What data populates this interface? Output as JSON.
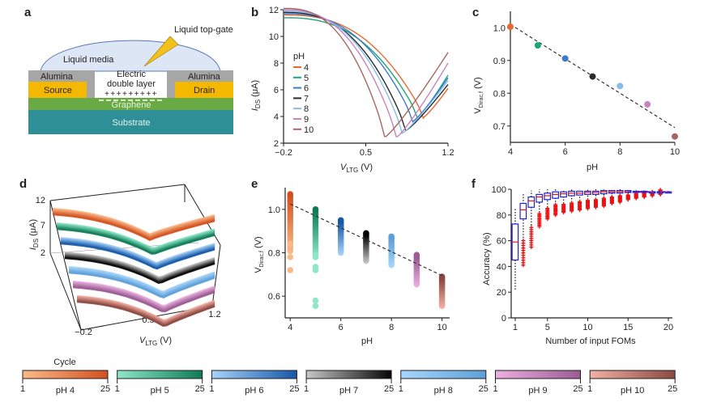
{
  "colors": {
    "pH4": "#e8692f",
    "pH5": "#1ea67a",
    "pH6": "#3b7bcb",
    "pH7": "#2b2b2b",
    "pH8": "#86bdec",
    "pH9": "#c882c0",
    "pH10": "#a86660",
    "alumina": "#a6a6a6",
    "electrode": "#f5b800",
    "graphene": "#6aaa45",
    "substrate": "#2f8f96",
    "liquid": "#dde6f5",
    "liquid_edge": "#5a78b3",
    "gate": "#f2c21a",
    "box_blue": "#2020e0",
    "outlier_red": "#ee1111"
  },
  "panel_a": {
    "label": "a",
    "gate_label": "Liquid top-gate",
    "liquid_label": "Liquid media",
    "alumina_left": "Alumina",
    "alumina_right": "Alumina",
    "source": "Source",
    "drain": "Drain",
    "edl_line1": "Electric",
    "edl_line2": "double layer",
    "plus_signs": "+++++++++",
    "graphene": "Graphene",
    "substrate": "Substrate"
  },
  "chart_data": [
    {
      "id": "b",
      "type": "line",
      "title": "",
      "xlabel": "V_LTG (V)",
      "ylabel": "I_DS (μA)",
      "xlim": [
        -0.2,
        1.2
      ],
      "ylim": [
        2,
        12
      ],
      "xticks": [
        -0.2,
        0.5,
        1.2
      ],
      "yticks": [
        2,
        4,
        6,
        8,
        10,
        12
      ],
      "legend_title": "pH",
      "legend_position": "left-middle",
      "series": [
        {
          "name": "4",
          "color_key": "pH4",
          "dirac_v": 1.0,
          "min_i": 4.0,
          "start_i": 11.6,
          "end_i": 6.1
        },
        {
          "name": "5",
          "color_key": "pH5",
          "dirac_v": 0.95,
          "min_i": 4.0,
          "start_i": 11.4,
          "end_i": 7.1
        },
        {
          "name": "6",
          "color_key": "pH6",
          "dirac_v": 0.91,
          "min_i": 3.7,
          "start_i": 11.7,
          "end_i": 6.9
        },
        {
          "name": "7",
          "color_key": "pH7",
          "dirac_v": 0.85,
          "min_i": 3.0,
          "start_i": 11.8,
          "end_i": 6.4
        },
        {
          "name": "8",
          "color_key": "pH8",
          "dirac_v": 0.82,
          "min_i": 2.8,
          "start_i": 11.9,
          "end_i": 6.7
        },
        {
          "name": "9",
          "color_key": "pH9",
          "dirac_v": 0.77,
          "min_i": 2.5,
          "start_i": 12.0,
          "end_i": 8.0
        },
        {
          "name": "10",
          "color_key": "pH10",
          "dirac_v": 0.67,
          "min_i": 2.5,
          "start_i": 12.1,
          "end_i": 8.8
        }
      ]
    },
    {
      "id": "c",
      "type": "scatter",
      "title": "",
      "xlabel": "pH",
      "ylabel": "V_Dirac,f (V)",
      "xlim": [
        4,
        10
      ],
      "ylim": [
        0.65,
        1.05
      ],
      "xticks": [
        4,
        6,
        8,
        10
      ],
      "yticks": [
        0.7,
        0.8,
        0.9,
        1.0
      ],
      "x": [
        4,
        5,
        6,
        7,
        8,
        9,
        10
      ],
      "y": [
        1.003,
        0.946,
        0.906,
        0.851,
        0.822,
        0.766,
        0.668
      ],
      "color_keys": [
        "pH4",
        "pH5",
        "pH6",
        "pH7",
        "pH8",
        "pH9",
        "pH10"
      ],
      "fit_line": {
        "x": [
          4,
          10
        ],
        "y": [
          1.01,
          0.695
        ],
        "style": "dashed"
      }
    },
    {
      "id": "d",
      "type": "line",
      "title": "",
      "projection": "3d",
      "xlabel": "V_LTG (V)",
      "zlabel": "I_DS (μA)",
      "xticks": [
        -0.2,
        0.5,
        1.2
      ],
      "zticks": [
        2,
        7,
        12
      ],
      "cycles_per_pH": 25,
      "series_pH": [
        4,
        5,
        6,
        7,
        8,
        9,
        10
      ],
      "color_keys": [
        "pH4",
        "pH5",
        "pH6",
        "pH7",
        "pH8",
        "pH9",
        "pH10"
      ]
    },
    {
      "id": "e",
      "type": "scatter",
      "title": "",
      "xlabel": "pH",
      "ylabel": "V_Dirac,f (V)",
      "xlim": [
        3.8,
        10.3
      ],
      "ylim": [
        0.5,
        1.1
      ],
      "xticks": [
        4,
        6,
        8,
        10
      ],
      "yticks": [
        0.6,
        0.8,
        1.0
      ],
      "groups": [
        {
          "x": 4,
          "color_key": "pH4",
          "min": 0.72,
          "max": 1.07,
          "outliers": [
            0.72,
            0.78,
            0.84
          ]
        },
        {
          "x": 5,
          "color_key": "pH5",
          "min": 0.72,
          "max": 1.0,
          "outliers": [
            0.555,
            0.58,
            0.72,
            0.735,
            0.78,
            0.79
          ]
        },
        {
          "x": 6,
          "color_key": "pH6",
          "min": 0.75,
          "max": 0.95,
          "outliers": []
        },
        {
          "x": 7,
          "color_key": "pH7",
          "min": 0.72,
          "max": 0.89,
          "outliers": []
        },
        {
          "x": 8,
          "color_key": "pH8",
          "min": 0.7,
          "max": 0.875,
          "outliers": []
        },
        {
          "x": 9,
          "color_key": "pH9",
          "min": 0.61,
          "max": 0.79,
          "outliers": []
        },
        {
          "x": 10,
          "color_key": "pH10",
          "min": 0.51,
          "max": 0.69,
          "outliers": []
        }
      ],
      "fit_line": {
        "x": [
          4,
          10
        ],
        "y": [
          1.025,
          0.695
        ],
        "style": "dashed"
      }
    },
    {
      "id": "f",
      "type": "box",
      "title": "",
      "xlabel": "Number of input FOMs",
      "ylabel": "Accuracy (%)",
      "xlim": [
        0.5,
        20.5
      ],
      "ylim": [
        0,
        100
      ],
      "xticks": [
        1,
        5,
        10,
        15,
        20
      ],
      "yticks": [
        0,
        20,
        40,
        60,
        80,
        100
      ],
      "boxes": [
        {
          "n": 1,
          "q1": 45,
          "median": 59,
          "q3": 73,
          "wlo": 22,
          "whi": 85,
          "outliers_lo": 0,
          "outliers_hi": 0
        },
        {
          "n": 2,
          "q1": 77,
          "median": 84,
          "q3": 89,
          "wlo": 60,
          "whi": 97,
          "outliers_lo": 41,
          "outliers_hi": 60
        },
        {
          "n": 3,
          "q1": 86,
          "median": 91,
          "q3": 94,
          "wlo": 72,
          "whi": 99,
          "outliers_lo": 55,
          "outliers_hi": 72
        },
        {
          "n": 4,
          "q1": 90,
          "median": 94,
          "q3": 96,
          "wlo": 82,
          "whi": 100,
          "outliers_lo": 71,
          "outliers_hi": 81
        },
        {
          "n": 5,
          "q1": 92,
          "median": 95,
          "q3": 97,
          "wlo": 86,
          "whi": 100,
          "outliers_lo": 77,
          "outliers_hi": 86
        },
        {
          "n": 6,
          "q1": 93,
          "median": 96,
          "q3": 98,
          "wlo": 88,
          "whi": 100,
          "outliers_lo": 80,
          "outliers_hi": 88
        },
        {
          "n": 7,
          "q1": 94,
          "median": 96.5,
          "q3": 98,
          "wlo": 89,
          "whi": 100,
          "outliers_lo": 82,
          "outliers_hi": 89
        },
        {
          "n": 8,
          "q1": 95,
          "median": 97,
          "q3": 98.5,
          "wlo": 90,
          "whi": 100,
          "outliers_lo": 83,
          "outliers_hi": 90
        },
        {
          "n": 9,
          "q1": 95.5,
          "median": 97,
          "q3": 98.5,
          "wlo": 91,
          "whi": 100,
          "outliers_lo": 84,
          "outliers_hi": 91
        },
        {
          "n": 10,
          "q1": 96,
          "median": 97.5,
          "q3": 98.5,
          "wlo": 92,
          "whi": 100,
          "outliers_lo": 85,
          "outliers_hi": 92
        },
        {
          "n": 11,
          "q1": 96,
          "median": 97.5,
          "q3": 98.5,
          "wlo": 92.5,
          "whi": 100,
          "outliers_lo": 86,
          "outliers_hi": 92.5
        },
        {
          "n": 12,
          "q1": 96.5,
          "median": 98,
          "q3": 99,
          "wlo": 93,
          "whi": 100,
          "outliers_lo": 87,
          "outliers_hi": 93
        },
        {
          "n": 13,
          "q1": 97,
          "median": 98,
          "q3": 99,
          "wlo": 94,
          "whi": 100,
          "outliers_lo": 89,
          "outliers_hi": 94
        },
        {
          "n": 14,
          "q1": 97,
          "median": 98,
          "q3": 99,
          "wlo": 95,
          "whi": 100,
          "outliers_lo": 90,
          "outliers_hi": 95
        },
        {
          "n": 15,
          "q1": 97.5,
          "median": 98,
          "q3": 99,
          "wlo": 96,
          "whi": 99.5,
          "outliers_lo": 92,
          "outliers_hi": 96
        },
        {
          "n": 16,
          "q1": 97.5,
          "median": 98,
          "q3": 98.5,
          "wlo": 97,
          "whi": 99.5,
          "outliers_lo": 93,
          "outliers_hi": 97
        },
        {
          "n": 17,
          "q1": 98,
          "median": 98,
          "q3": 98.5,
          "wlo": 97.5,
          "whi": 99,
          "outliers_lo": 94,
          "outliers_hi": 97.5
        },
        {
          "n": 18,
          "q1": 98,
          "median": 98,
          "q3": 98,
          "wlo": 98,
          "whi": 98,
          "outliers_lo": 95,
          "outliers_hi": 98
        },
        {
          "n": 19,
          "q1": 98,
          "median": 98,
          "q3": 98,
          "wlo": 98,
          "whi": 98,
          "outliers_lo": 96,
          "outliers_hi": 99.5
        },
        {
          "n": 20,
          "q1": 98,
          "median": 98,
          "q3": 98,
          "wlo": 98,
          "whi": 98,
          "outliers_lo": 0,
          "outliers_hi": 0
        }
      ]
    }
  ],
  "colorbars": {
    "title": "Cycle",
    "min_label": "1",
    "max_label": "25",
    "items": [
      {
        "label": "pH 4",
        "from": "#fbb989",
        "to": "#d2501f"
      },
      {
        "label": "pH 5",
        "from": "#8ee8c8",
        "to": "#0e7a56"
      },
      {
        "label": "pH 6",
        "from": "#a8d2fa",
        "to": "#1657a8"
      },
      {
        "label": "pH 7",
        "from": "#c8c8c8",
        "to": "#050505"
      },
      {
        "label": "pH 8",
        "from": "#a8d6fb",
        "to": "#5d9fd8"
      },
      {
        "label": "pH 9",
        "from": "#eab0df",
        "to": "#9a5b92"
      },
      {
        "label": "pH 10",
        "from": "#f5b0a4",
        "to": "#8a4840"
      }
    ]
  },
  "panel_labels": {
    "b": "b",
    "c": "c",
    "d": "d",
    "e": "e",
    "f": "f"
  },
  "axis_text": {
    "b_ylabel_main": "I",
    "b_ylabel_sub": "DS",
    "b_ylabel_unit": " (μA)",
    "b_xlabel_main": "V",
    "b_xlabel_sub": "LTG",
    "b_xlabel_unit": " (V)",
    "c_ylabel_main": "V",
    "c_ylabel_sub": "Dirac,f",
    "c_ylabel_unit": " (V)",
    "ph_label": "pH",
    "f_ylabel": "Accuracy (%)",
    "f_xlabel": "Number of input FOMs"
  }
}
